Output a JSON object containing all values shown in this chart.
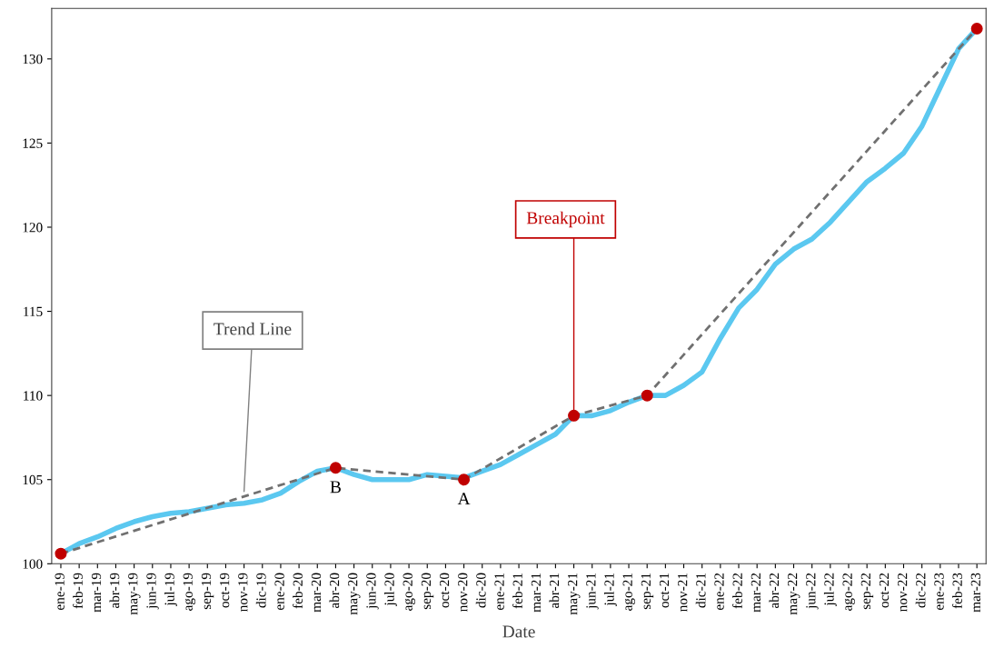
{
  "chart_data": {
    "type": "line",
    "xlabel": "Date",
    "categories": [
      "ene-19",
      "feb-19",
      "mar-19",
      "abr-19",
      "may-19",
      "jun-19",
      "jul-19",
      "ago-19",
      "sep-19",
      "oct-19",
      "nov-19",
      "dic-19",
      "ene-20",
      "feb-20",
      "mar-20",
      "abr-20",
      "may-20",
      "jun-20",
      "jul-20",
      "ago-20",
      "sep-20",
      "oct-20",
      "nov-20",
      "dic-20",
      "ene-21",
      "feb-21",
      "mar-21",
      "abr-21",
      "may-21",
      "jun-21",
      "jul-21",
      "ago-21",
      "sep-21",
      "oct-21",
      "nov-21",
      "dic-21",
      "ene-22",
      "feb-22",
      "mar-22",
      "abr-22",
      "may-22",
      "jun-22",
      "jul-22",
      "ago-22",
      "sep-22",
      "oct-22",
      "nov-22",
      "dic-22",
      "ene-23",
      "feb-23",
      "mar-23"
    ],
    "series": [
      {
        "color": "#5bc8f0",
        "marker": "none",
        "line_style": "solid",
        "values": [
          100.6,
          101.2,
          101.6,
          102.1,
          102.5,
          102.8,
          103.0,
          103.1,
          103.3,
          103.5,
          103.6,
          103.8,
          104.2,
          104.9,
          105.5,
          105.7,
          105.3,
          105.0,
          105.0,
          105.0,
          105.3,
          105.2,
          105.1,
          105.5,
          105.9,
          106.5,
          107.1,
          107.7,
          108.8,
          108.8,
          109.1,
          109.6,
          110.0,
          110.0,
          110.6,
          111.4,
          113.4,
          115.2,
          116.3,
          117.8,
          118.7,
          119.3,
          120.3,
          121.5,
          122.7,
          123.5,
          124.4,
          126.0,
          128.3,
          130.6,
          131.8
        ]
      },
      {
        "type": "line",
        "color": "#707070",
        "marker": "none",
        "line_style": "dashed",
        "x": [
          "ene-19",
          "abr-20",
          "nov-20",
          "may-21",
          "sep-21",
          "mar-23"
        ],
        "values": [
          100.6,
          105.7,
          105.0,
          108.8,
          110.0,
          131.8
        ]
      },
      {
        "type": "scatter",
        "color": "#c00000",
        "marker": "circle",
        "x": [
          "ene-19",
          "abr-20",
          "nov-20",
          "may-21",
          "sep-21",
          "mar-23"
        ],
        "values": [
          100.6,
          105.7,
          105.0,
          108.8,
          110.0,
          131.8
        ]
      }
    ],
    "annotations": [
      {
        "text": "B",
        "x": "abr-20",
        "y": 105.7
      },
      {
        "text": "A",
        "x": "nov-20",
        "y": 105.0
      },
      {
        "text": "Trend Line",
        "x": "nov-19",
        "y": 104.3
      },
      {
        "text": "Breakpoint",
        "x": "may-21",
        "y": 108.8
      }
    ],
    "ylim": [
      100,
      133
    ],
    "yticks": [
      100,
      105,
      110,
      115,
      120,
      125,
      130
    ],
    "grid": false,
    "legend": false
  }
}
